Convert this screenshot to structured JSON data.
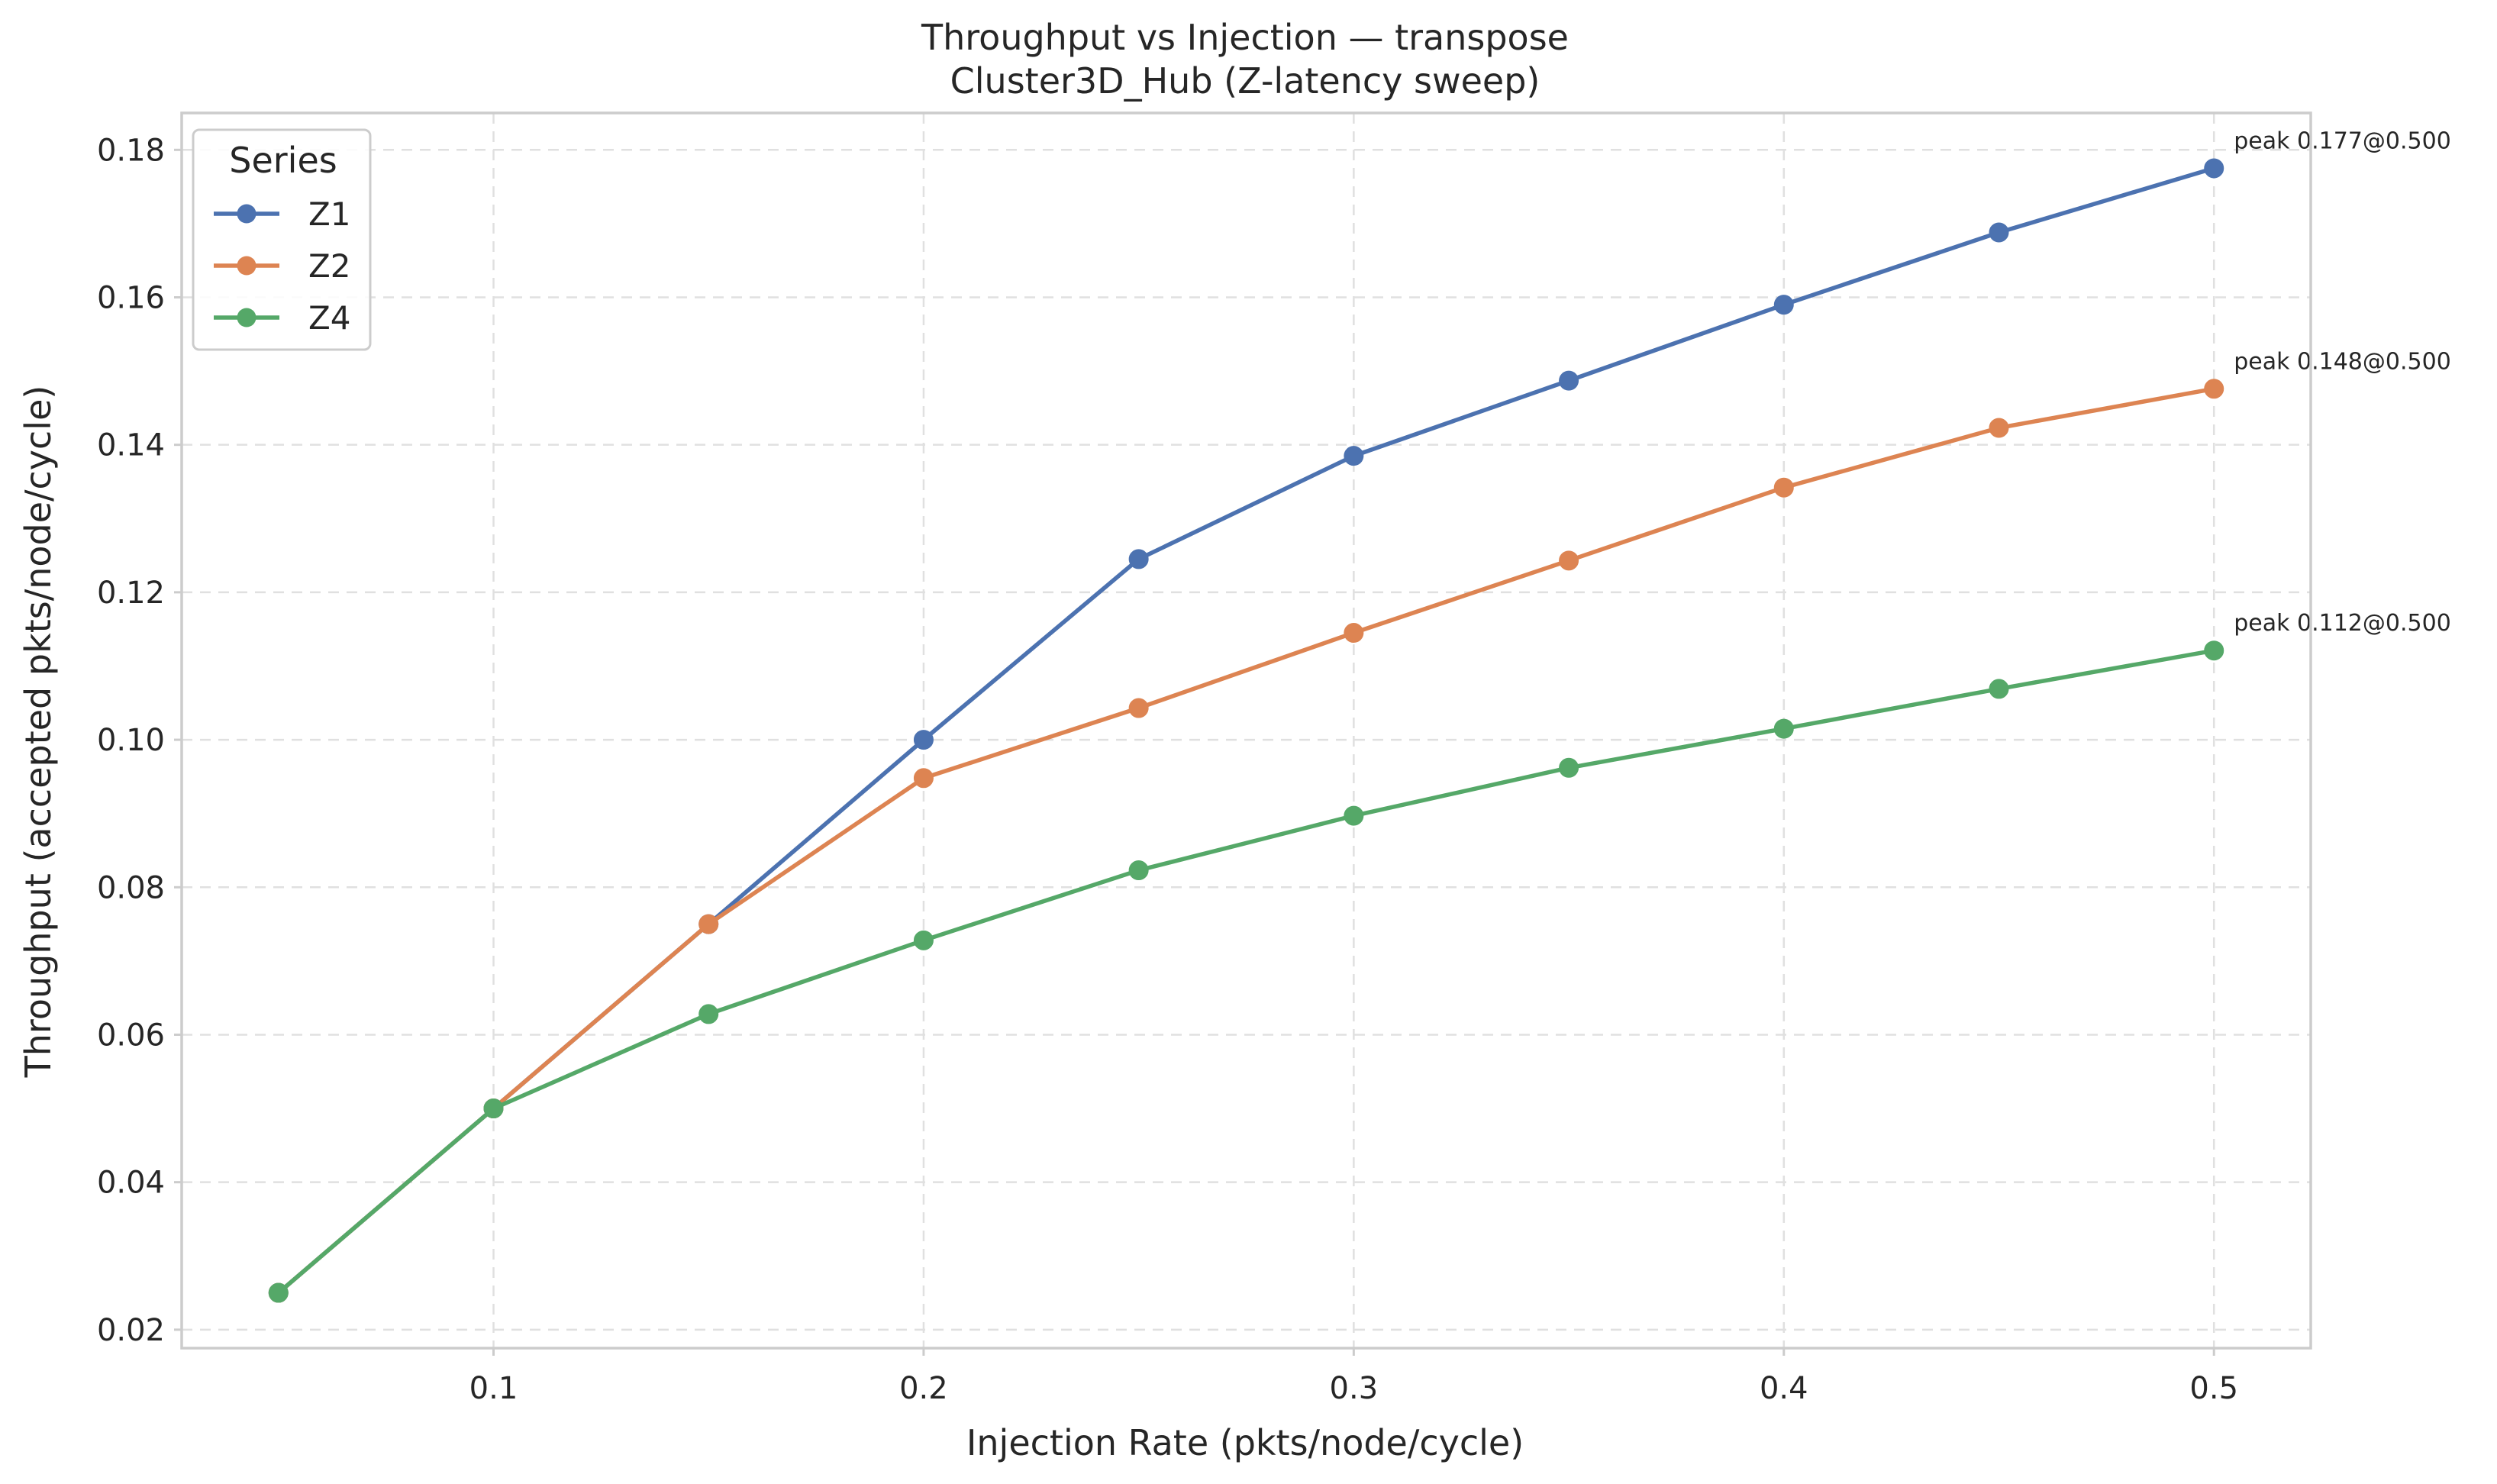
{
  "chart_data": {
    "type": "line",
    "title": "Throughput vs Injection — transpose",
    "subtitle": "Cluster3D_Hub (Z-latency sweep)",
    "xlabel": "Injection Rate (pkts/node/cycle)",
    "ylabel": "Throughput (accepted pkts/node/cycle)",
    "xlim": [
      0.0275,
      0.5225
    ],
    "ylim": [
      0.0175,
      0.185
    ],
    "xticks": [
      0.1,
      0.2,
      0.3,
      0.4,
      0.5
    ],
    "xtick_labels": [
      "0.1",
      "0.2",
      "0.3",
      "0.4",
      "0.5"
    ],
    "yticks": [
      0.02,
      0.04,
      0.06,
      0.08,
      0.1,
      0.12,
      0.14,
      0.16,
      0.18
    ],
    "ytick_labels": [
      "0.02",
      "0.04",
      "0.06",
      "0.08",
      "0.10",
      "0.12",
      "0.14",
      "0.16",
      "0.18"
    ],
    "grid": true,
    "legend": {
      "title": "Series",
      "placement": "top-left"
    },
    "series": [
      {
        "name": "Z1",
        "color": "#4c72b0",
        "x": [
          0.05,
          0.1,
          0.15,
          0.2,
          0.25,
          0.3,
          0.35,
          0.4,
          0.45,
          0.5
        ],
        "values": [
          0.025,
          0.05,
          0.075,
          0.1,
          0.1245,
          0.1385,
          0.1487,
          0.159,
          0.1688,
          0.1775
        ],
        "annotation": "peak 0.177@0.500"
      },
      {
        "name": "Z2",
        "color": "#dd8452",
        "x": [
          0.05,
          0.1,
          0.15,
          0.2,
          0.25,
          0.3,
          0.35,
          0.4,
          0.45,
          0.5
        ],
        "values": [
          0.025,
          0.05,
          0.075,
          0.0948,
          0.1043,
          0.1145,
          0.1243,
          0.1342,
          0.1423,
          0.1476
        ],
        "annotation": "peak 0.148@0.500"
      },
      {
        "name": "Z4",
        "color": "#55a868",
        "x": [
          0.05,
          0.1,
          0.15,
          0.2,
          0.25,
          0.3,
          0.35,
          0.4,
          0.45,
          0.5
        ],
        "values": [
          0.025,
          0.05,
          0.0628,
          0.0728,
          0.0823,
          0.0897,
          0.0962,
          0.1015,
          0.1069,
          0.1121
        ],
        "annotation": "peak 0.112@0.500"
      }
    ]
  }
}
